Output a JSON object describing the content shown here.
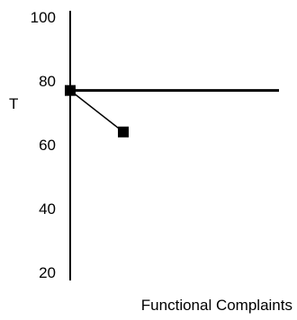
{
  "chart_data": {
    "type": "line",
    "title": "",
    "xlabel": "Functional Complaints",
    "ylabel": "T",
    "ylim": [
      20,
      100
    ],
    "yticks": [
      "20",
      "40",
      "60",
      "80",
      "100"
    ],
    "reference_line": {
      "y": 77
    },
    "series": [
      {
        "points": [
          {
            "x": 0,
            "y": 77
          },
          {
            "x": 1,
            "y": 64
          }
        ]
      }
    ],
    "grid": false,
    "legend": "none"
  }
}
